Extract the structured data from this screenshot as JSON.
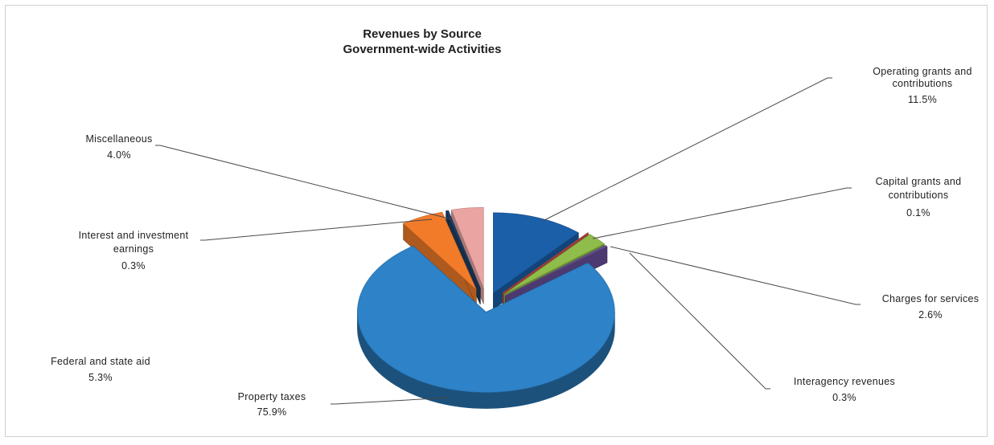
{
  "chart_data": {
    "type": "pie",
    "title": "Revenues by Source",
    "subtitle": "Government-wide Activities",
    "slices": [
      {
        "label": "Operating grants and contributions",
        "value": 11.5,
        "pct": "11.5%",
        "color": "#1b5fa8"
      },
      {
        "label": "Capital grants and contributions",
        "value": 0.1,
        "pct": "0.1%",
        "color": "#d2504a"
      },
      {
        "label": "Charges for services",
        "value": 2.6,
        "pct": "2.6%",
        "color": "#8fbc4a"
      },
      {
        "label": "Interagency revenues",
        "value": 0.3,
        "pct": "0.3%",
        "color": "#6a4f9c"
      },
      {
        "label": "Property taxes",
        "value": 75.9,
        "pct": "75.9%",
        "color": "#2d82c8"
      },
      {
        "label": "Federal and state aid",
        "value": 5.3,
        "pct": "5.3%",
        "color": "#f27b2a"
      },
      {
        "label": "Interest and investment earnings",
        "value": 0.3,
        "pct": "0.3%",
        "color": "#1e3f66"
      },
      {
        "label": "Miscellaneous",
        "value": 4.0,
        "pct": "4.0%",
        "color": "#eaa4a2"
      }
    ]
  }
}
